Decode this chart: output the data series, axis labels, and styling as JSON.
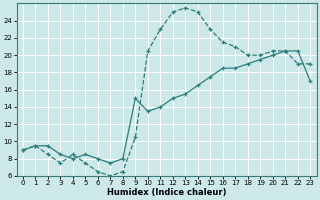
{
  "xlabel": "Humidex (Indice chaleur)",
  "bg_color": "#cce8e8",
  "line_color": "#2d7d7d",
  "grid_color": "#ffffff",
  "curve1_x": [
    0,
    1,
    2,
    3,
    4,
    5,
    6,
    7,
    8,
    9,
    10,
    11,
    12,
    13,
    14,
    15,
    16,
    17,
    18,
    19,
    20,
    21,
    22,
    23
  ],
  "curve1_y": [
    9,
    9.5,
    8.5,
    7.5,
    8.5,
    7.5,
    6.5,
    6.0,
    6.5,
    10.5,
    20.5,
    23.0,
    25.0,
    25.5,
    25.0,
    23.0,
    21.5,
    21.0,
    20.0,
    20.0,
    20.5,
    20.5,
    19.0,
    19.0
  ],
  "curve2_x": [
    0,
    1,
    2,
    3,
    4,
    5,
    6,
    7,
    8,
    9,
    10,
    11,
    12,
    13,
    14,
    15,
    16,
    17,
    18,
    19,
    20,
    21,
    22,
    23
  ],
  "curve2_y": [
    9,
    9.5,
    9.5,
    8.5,
    8.0,
    8.5,
    8.0,
    7.5,
    8.0,
    15.0,
    13.5,
    14.0,
    15.0,
    15.5,
    16.5,
    17.5,
    18.5,
    18.5,
    19.0,
    19.5,
    20.0,
    20.5,
    20.5,
    17.0
  ],
  "xlim": [
    -0.5,
    23.5
  ],
  "ylim": [
    6,
    26
  ],
  "xticks": [
    0,
    1,
    2,
    3,
    4,
    5,
    6,
    7,
    8,
    9,
    10,
    11,
    12,
    13,
    14,
    15,
    16,
    17,
    18,
    19,
    20,
    21,
    22,
    23
  ],
  "yticks": [
    6,
    8,
    10,
    12,
    14,
    16,
    18,
    20,
    22,
    24
  ],
  "xlabel_fontsize": 6,
  "tick_fontsize": 5
}
